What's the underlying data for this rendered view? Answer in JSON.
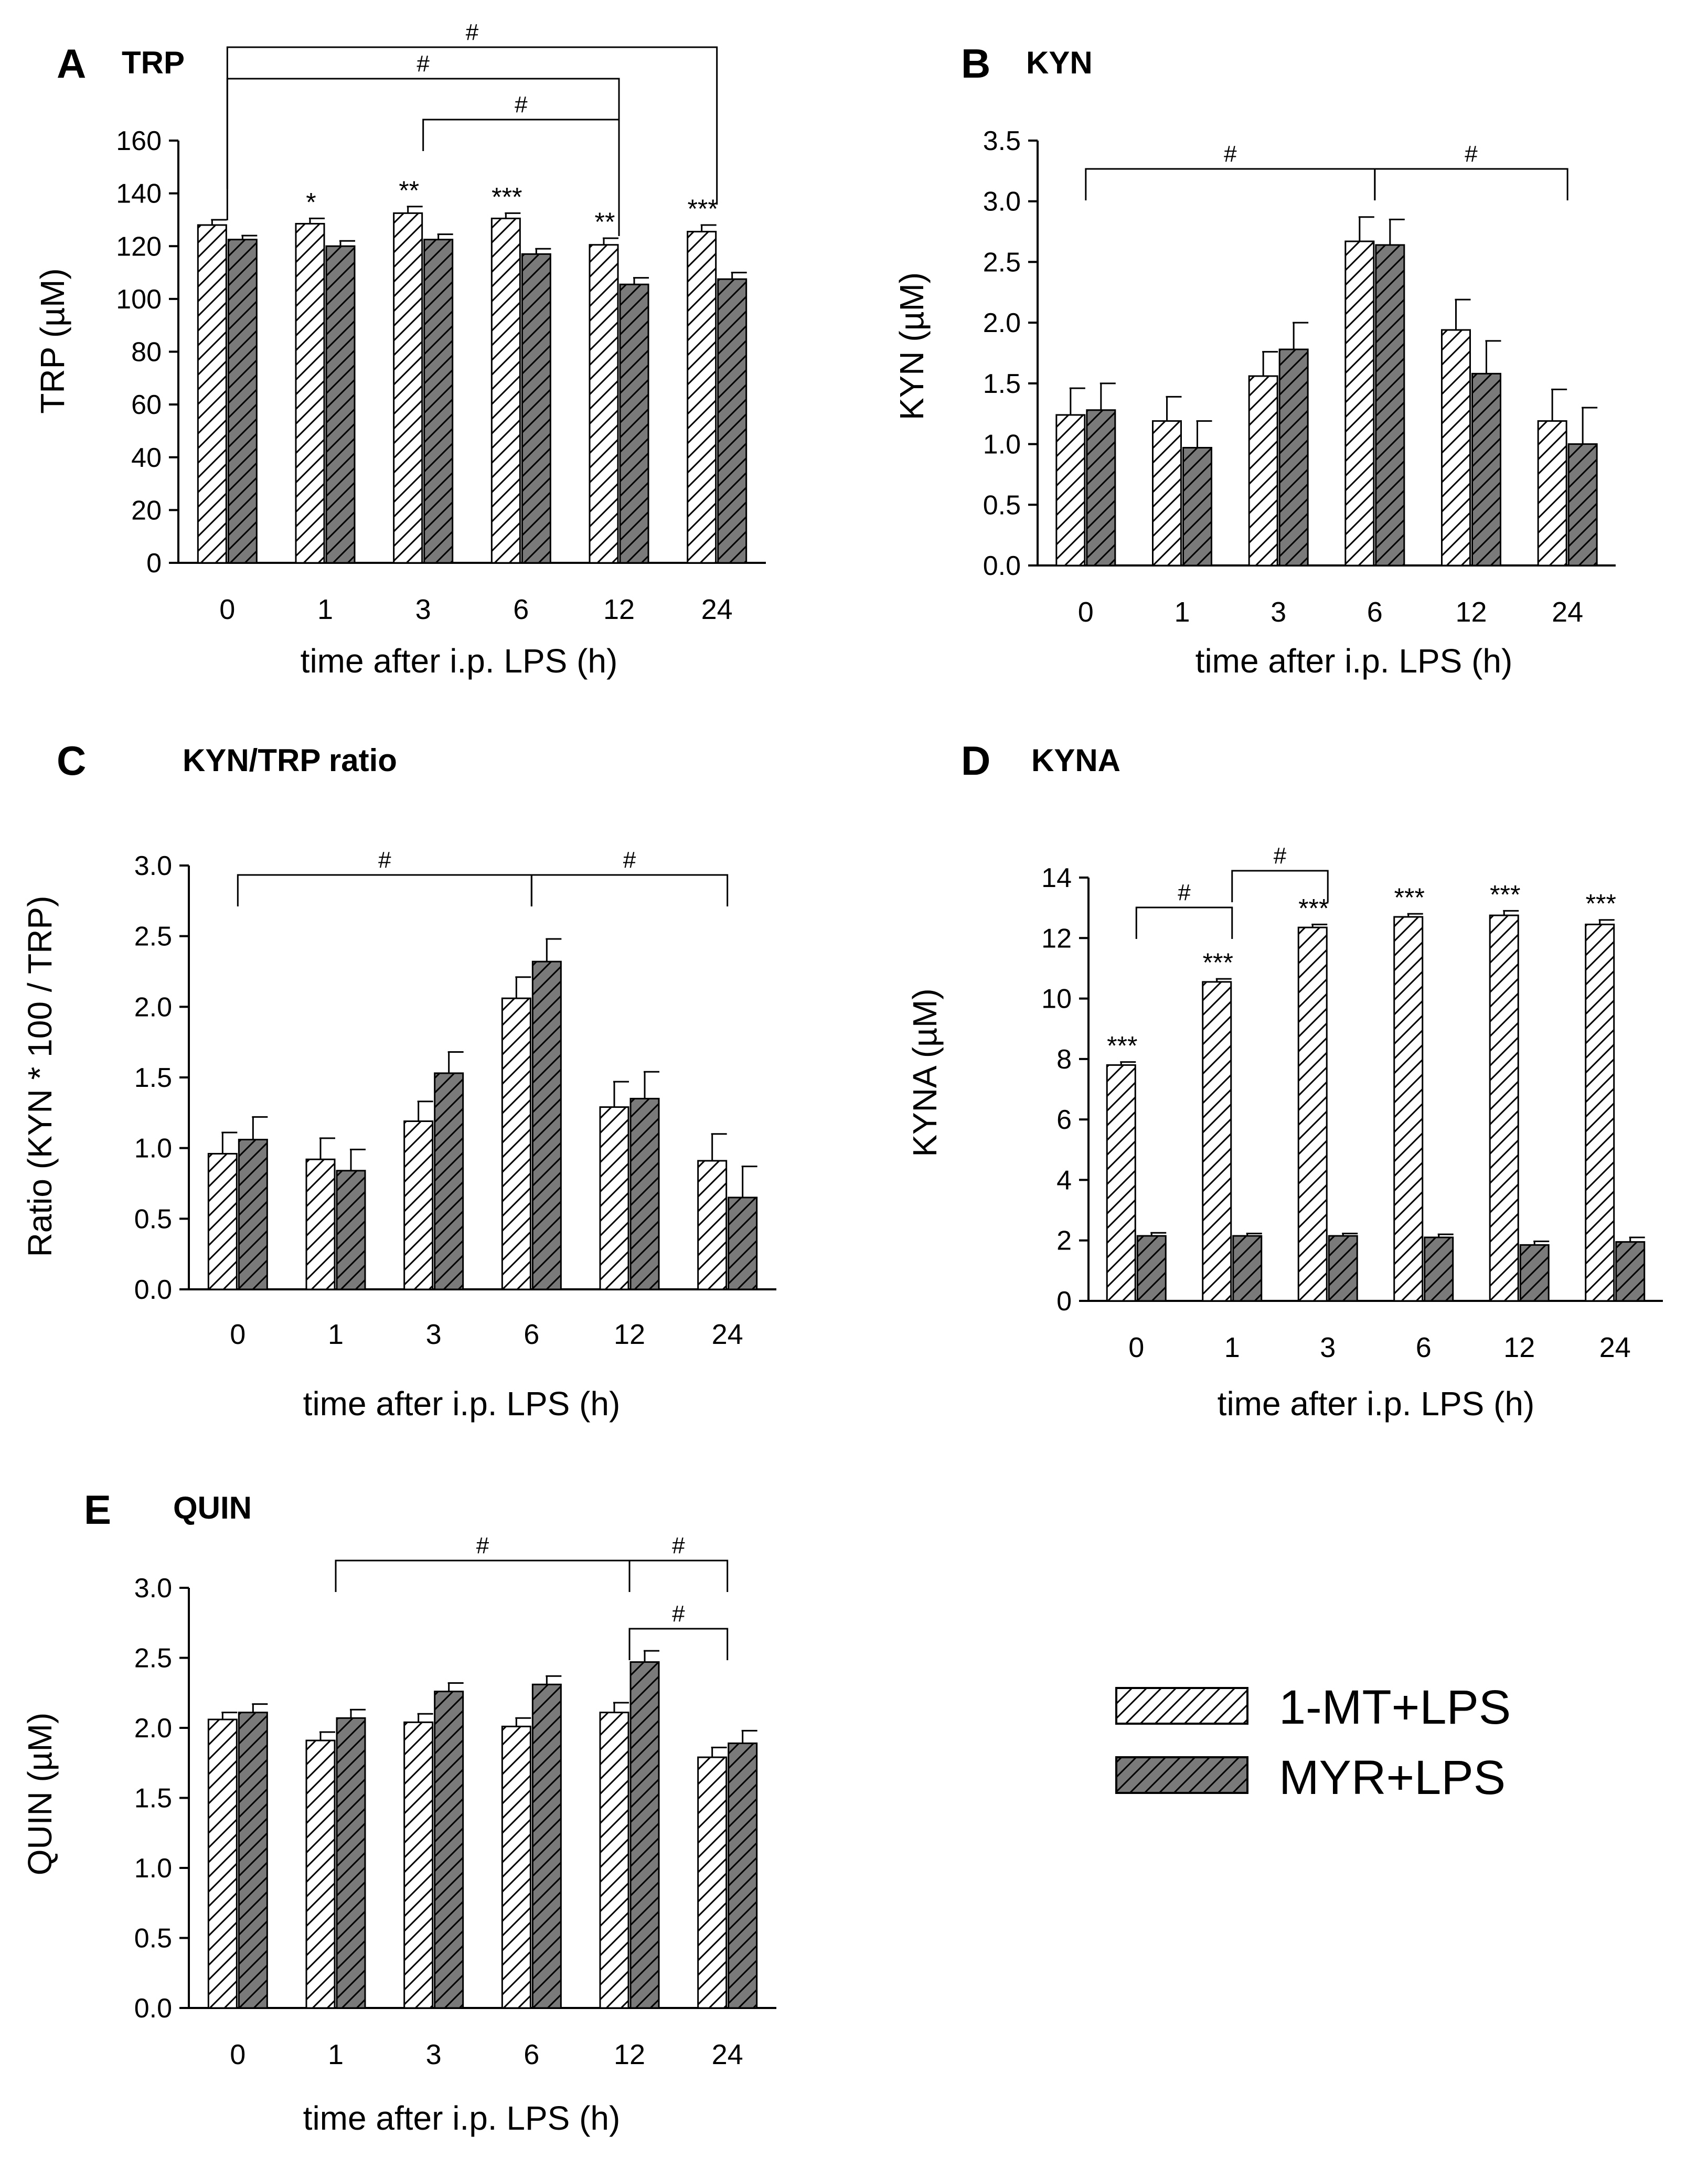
{
  "chart_data": [
    {
      "type": "bar",
      "panel_letter": "A",
      "title": "TRP",
      "xlabel": "time after  i.p. LPS (h)",
      "ylabel": "TRP (µM)",
      "ylim": [
        0,
        160
      ],
      "yticks": [
        "0",
        "20",
        "40",
        "60",
        "80",
        "100",
        "120",
        "140",
        "160"
      ],
      "yticks_num": [
        0,
        20,
        40,
        60,
        80,
        100,
        120,
        140,
        160
      ],
      "categories": [
        "0",
        "1",
        "3",
        "6",
        "12",
        "24"
      ],
      "series": [
        {
          "name": "1-MT+LPS",
          "values": [
            128,
            128.5,
            132.5,
            130.5,
            120.5,
            125.5
          ],
          "errors": [
            2,
            2,
            2.5,
            2,
            2.5,
            2.5
          ]
        },
        {
          "name": "MYR+LPS",
          "values": [
            122.5,
            120,
            122.5,
            117,
            105.5,
            107.5
          ],
          "errors": [
            1.5,
            2,
            2,
            2,
            2.5,
            2.5
          ]
        }
      ],
      "stars": [
        "",
        "*",
        "**",
        "***",
        "**",
        "***"
      ],
      "brackets": [
        {
          "label": "#",
          "from": "0",
          "to": "24"
        },
        {
          "label": "#",
          "from": "0",
          "to": "12"
        },
        {
          "label": "#",
          "from": "3",
          "to": "12"
        }
      ]
    },
    {
      "type": "bar",
      "panel_letter": "B",
      "title": "KYN",
      "xlabel": "time after  i.p. LPS (h)",
      "ylabel": "KYN (µM)",
      "ylim": [
        0,
        3.5
      ],
      "yticks": [
        "0.0",
        "0.5",
        "1.0",
        "1.5",
        "2.0",
        "2.5",
        "3.0",
        "3.5"
      ],
      "yticks_num": [
        0,
        0.5,
        1,
        1.5,
        2,
        2.5,
        3,
        3.5
      ],
      "categories": [
        "0",
        "1",
        "3",
        "6",
        "12",
        "24"
      ],
      "series": [
        {
          "name": "1-MT+LPS",
          "values": [
            1.24,
            1.19,
            1.56,
            2.67,
            1.94,
            1.19
          ],
          "errors": [
            0.22,
            0.2,
            0.2,
            0.2,
            0.25,
            0.26
          ]
        },
        {
          "name": "MYR+LPS",
          "values": [
            1.28,
            0.97,
            1.78,
            2.64,
            1.58,
            1.0
          ],
          "errors": [
            0.22,
            0.22,
            0.22,
            0.21,
            0.27,
            0.3
          ]
        }
      ],
      "stars": [
        "",
        "",
        "",
        "",
        "",
        ""
      ],
      "brackets": [
        {
          "label": "#",
          "from": "0",
          "to": "6"
        },
        {
          "label": "#",
          "from": "6",
          "to": "24"
        }
      ]
    },
    {
      "type": "bar",
      "panel_letter": "C",
      "title": "KYN/TRP ratio",
      "xlabel": "time after  i.p. LPS (h)",
      "ylabel": "Ratio (KYN * 100 / TRP)",
      "ylim": [
        0,
        3.0
      ],
      "yticks": [
        "0.0",
        "0.5",
        "1.0",
        "1.5",
        "2.0",
        "2.5",
        "3.0"
      ],
      "yticks_num": [
        0,
        0.5,
        1,
        1.5,
        2,
        2.5,
        3
      ],
      "categories": [
        "0",
        "1",
        "3",
        "6",
        "12",
        "24"
      ],
      "series": [
        {
          "name": "1-MT+LPS",
          "values": [
            0.96,
            0.92,
            1.19,
            2.06,
            1.29,
            0.91
          ],
          "errors": [
            0.15,
            0.15,
            0.14,
            0.15,
            0.18,
            0.19
          ]
        },
        {
          "name": "MYR+LPS",
          "values": [
            1.06,
            0.84,
            1.53,
            2.32,
            1.35,
            0.65
          ],
          "errors": [
            0.16,
            0.15,
            0.15,
            0.16,
            0.19,
            0.22
          ]
        }
      ],
      "stars": [
        "",
        "",
        "",
        "",
        "",
        ""
      ],
      "brackets": [
        {
          "label": "#",
          "from": "0",
          "to": "6"
        },
        {
          "label": "#",
          "from": "6",
          "to": "24"
        }
      ]
    },
    {
      "type": "bar",
      "panel_letter": "D",
      "title": "KYNA",
      "xlabel": "time after  i.p. LPS (h)",
      "ylabel": "KYNA (µM)",
      "ylim": [
        0,
        14
      ],
      "yticks": [
        "0",
        "2",
        "4",
        "6",
        "8",
        "10",
        "12",
        "14"
      ],
      "yticks_num": [
        0,
        2,
        4,
        6,
        8,
        10,
        12,
        14
      ],
      "categories": [
        "0",
        "1",
        "3",
        "6",
        "12",
        "24"
      ],
      "series": [
        {
          "name": "1-MT+LPS",
          "values": [
            7.8,
            10.55,
            12.35,
            12.7,
            12.75,
            12.45
          ],
          "errors": [
            0.1,
            0.1,
            0.1,
            0.1,
            0.15,
            0.15
          ]
        },
        {
          "name": "MYR+LPS",
          "values": [
            2.15,
            2.15,
            2.15,
            2.1,
            1.85,
            1.95
          ],
          "errors": [
            0.1,
            0.08,
            0.08,
            0.1,
            0.12,
            0.15
          ]
        }
      ],
      "stars": [
        "***",
        "***",
        "***",
        "***",
        "***",
        "***"
      ],
      "brackets": [
        {
          "label": "#",
          "from": "0",
          "to": "1"
        },
        {
          "label": "#",
          "from": "1",
          "to": "3"
        }
      ]
    },
    {
      "type": "bar",
      "panel_letter": "E",
      "title": "QUIN",
      "xlabel": "time after  i.p. LPS (h)",
      "ylabel": "QUIN (µM)",
      "ylim": [
        0,
        3.0
      ],
      "yticks": [
        "0.0",
        "0.5",
        "1.0",
        "1.5",
        "2.0",
        "2.5",
        "3.0"
      ],
      "yticks_num": [
        0,
        0.5,
        1,
        1.5,
        2,
        2.5,
        3
      ],
      "categories": [
        "0",
        "1",
        "3",
        "6",
        "12",
        "24"
      ],
      "series": [
        {
          "name": "1-MT+LPS",
          "values": [
            2.06,
            1.91,
            2.04,
            2.01,
            2.11,
            1.79
          ],
          "errors": [
            0.05,
            0.06,
            0.06,
            0.06,
            0.07,
            0.07
          ]
        },
        {
          "name": "MYR+LPS",
          "values": [
            2.11,
            2.07,
            2.26,
            2.31,
            2.47,
            1.89
          ],
          "errors": [
            0.06,
            0.06,
            0.06,
            0.06,
            0.08,
            0.09
          ]
        }
      ],
      "stars": [
        "",
        "",
        "",
        "",
        "",
        ""
      ],
      "brackets": [
        {
          "label": "#",
          "from": "1",
          "to": "12"
        },
        {
          "label": "#",
          "from": "12",
          "to": "24"
        },
        {
          "label": "#",
          "from": "12",
          "to": "24"
        }
      ]
    }
  ],
  "legend": {
    "entries": [
      "1-MT+LPS",
      "MYR+LPS"
    ]
  },
  "colors": {
    "series_1_fill": "#ffffff",
    "series_2_fill": "#7a7a7a",
    "hatch": "#000000"
  }
}
